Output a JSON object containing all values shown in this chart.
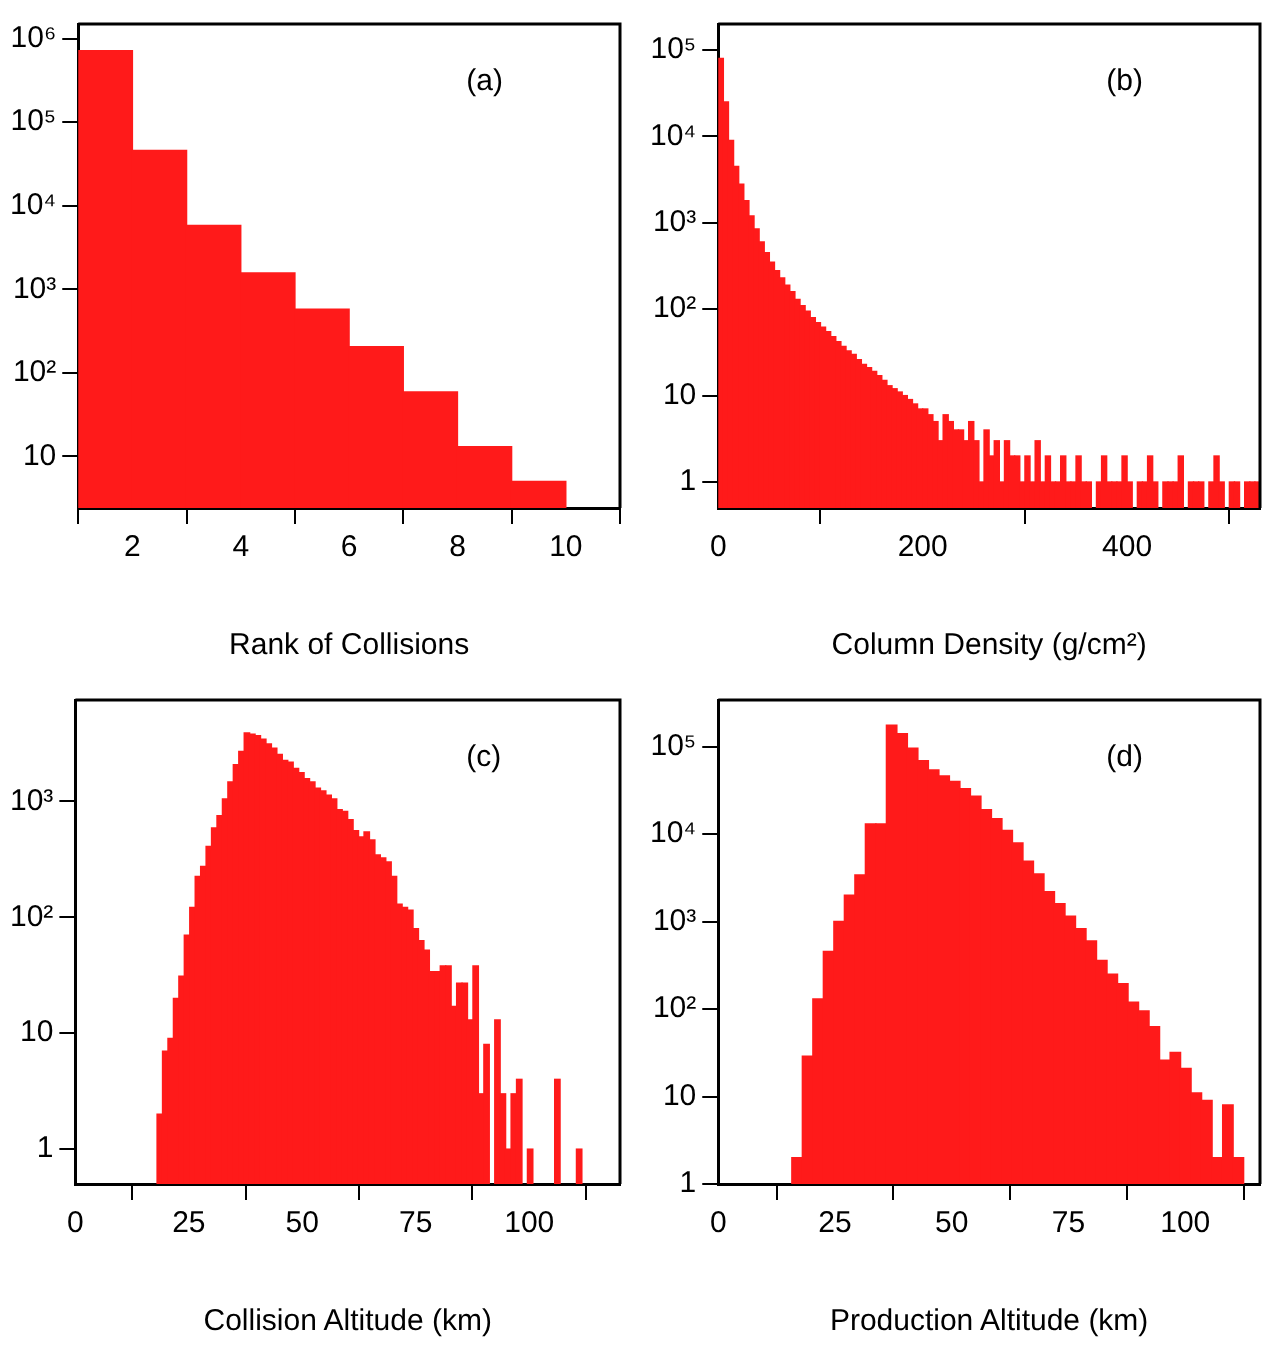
{
  "chart_data": [
    {
      "type": "histogram",
      "xlabel": "Rank of Collisions",
      "annotations": [
        "(a)"
      ],
      "color": "#ff1a1a",
      "log": "y",
      "bins": [
        1,
        2,
        3,
        4,
        5,
        6,
        7,
        8,
        9,
        10
      ],
      "values": [
        720000,
        46000,
        5800,
        1570,
        577,
        205,
        59,
        13,
        5
      ],
      "xlim": [
        1,
        11
      ],
      "xticks": [
        2,
        4,
        6,
        8,
        10
      ],
      "ylim": [
        2.4,
        1500000
      ],
      "yticks": [
        {
          "value": 10,
          "label": "10"
        },
        {
          "value": 100,
          "label": "10²"
        },
        {
          "value": 1000,
          "label": "10³"
        },
        {
          "value": 10000,
          "label": "10⁴"
        },
        {
          "value": 100000,
          "label": "10⁵"
        },
        {
          "value": 1000000,
          "label": "10⁶"
        }
      ]
    },
    {
      "type": "histogram",
      "xlabel": "Column Density (g/cm²)",
      "annotations": [
        "(b)"
      ],
      "color": "#ff1a1a",
      "log": "y",
      "bins": [
        0,
        5,
        10,
        15,
        20,
        25,
        30,
        35,
        40,
        45,
        50,
        55,
        60,
        65,
        70,
        75,
        80,
        85,
        90,
        95,
        100,
        105,
        110,
        115,
        120,
        125,
        130,
        135,
        140,
        145,
        150,
        155,
        160,
        165,
        170,
        175,
        180,
        185,
        190,
        195,
        200,
        205,
        210,
        215,
        220,
        225,
        230,
        235,
        240,
        245,
        250,
        255,
        260,
        265,
        270,
        275,
        280,
        285,
        290,
        295,
        300,
        305,
        310,
        315,
        320,
        325,
        330,
        335,
        340,
        345,
        350,
        355,
        360,
        365,
        370,
        375,
        380,
        385,
        390,
        395,
        400,
        405,
        410,
        415,
        420,
        425,
        430,
        435,
        440,
        445,
        450,
        455,
        460,
        465,
        470,
        475,
        480,
        485,
        490,
        495,
        500,
        505,
        510,
        515,
        520,
        525,
        530
      ],
      "values": [
        80000,
        25000,
        9000,
        4500,
        2800,
        1800,
        1200,
        850,
        600,
        450,
        350,
        280,
        230,
        190,
        160,
        130,
        110,
        95,
        80,
        70,
        62,
        55,
        48,
        42,
        37,
        33,
        30,
        26,
        23,
        21,
        19,
        17,
        15,
        13,
        12,
        11,
        10,
        9,
        8,
        7,
        7,
        6,
        5,
        3,
        6,
        5,
        4,
        4,
        3,
        5,
        3,
        1,
        4,
        2,
        3,
        1,
        3,
        2,
        2,
        1,
        2,
        1,
        3,
        1,
        2,
        1,
        1,
        2,
        1,
        1,
        2,
        1,
        1,
        null,
        1,
        2,
        1,
        1,
        1,
        2,
        1,
        null,
        1,
        1,
        2,
        1,
        null,
        1,
        1,
        1,
        2,
        null,
        1,
        1,
        1,
        null,
        1,
        2,
        1,
        null,
        1,
        1,
        null,
        1,
        1,
        1
      ],
      "xlim": [
        0,
        530
      ],
      "xticks": [
        0,
        200,
        400
      ],
      "ylim": [
        0.5,
        200000
      ],
      "yticks": [
        {
          "value": 1,
          "label": "1"
        },
        {
          "value": 10,
          "label": "10"
        },
        {
          "value": 100,
          "label": "10²"
        },
        {
          "value": 1000,
          "label": "10³"
        },
        {
          "value": 10000,
          "label": "10⁴"
        },
        {
          "value": 100000,
          "label": "10⁵"
        }
      ]
    },
    {
      "type": "histogram",
      "xlabel": "Collision Altitude (km)",
      "annotations": [
        "(c)"
      ],
      "color": "#ff1a1a",
      "log": "y",
      "bins": [
        18,
        19.2,
        20.4,
        21.6,
        22.8,
        24,
        25.2,
        26.4,
        27.6,
        28.8,
        30,
        31.2,
        32.4,
        33.6,
        34.8,
        36,
        37.2,
        38.4,
        39.6,
        40.8,
        42,
        43.2,
        44.4,
        45.6,
        46.8,
        48,
        49.2,
        50.4,
        51.6,
        52.8,
        54,
        55.2,
        56.4,
        57.6,
        58.8,
        60,
        61.2,
        62.4,
        63.6,
        64.8,
        66,
        67.2,
        68.4,
        69.6,
        70.8,
        72,
        73.2,
        74.4,
        75.6,
        76.8,
        78,
        79.2,
        80.4,
        81.6,
        82.8,
        84,
        85.2,
        86.4,
        87.6,
        88.8,
        90,
        91.2,
        92.4,
        93.6,
        94.8,
        96,
        97.2,
        98.4,
        99.6,
        100.8,
        102,
        103.2,
        104.4,
        105.6,
        106.8,
        108,
        109.2,
        110.4,
        111.6
      ],
      "values": [
        2,
        7,
        9,
        20,
        31,
        70,
        122,
        225,
        275,
        410,
        590,
        755,
        1050,
        1475,
        2075,
        2700,
        3900,
        3800,
        3700,
        3450,
        3140,
        2880,
        2550,
        2260,
        2180,
        1930,
        1770,
        1570,
        1475,
        1300,
        1230,
        1130,
        1050,
        850,
        820,
        695,
        560,
        495,
        545,
        465,
        345,
        325,
        300,
        225,
        130,
        122,
        115,
        80,
        63,
        52,
        34,
        34,
        38,
        38,
        17,
        27,
        27,
        13,
        38,
        3,
        8,
        null,
        13,
        3,
        1,
        3,
        4,
        null,
        1,
        null,
        null,
        null,
        null,
        4,
        null,
        null,
        null,
        1
      ],
      "xlim": [
        0,
        120
      ],
      "xticks": [
        0,
        25,
        50,
        75,
        100
      ],
      "ylim": [
        0.5,
        7500
      ],
      "yticks": [
        {
          "value": 1,
          "label": "1"
        },
        {
          "value": 10,
          "label": "10"
        },
        {
          "value": 100,
          "label": "10²"
        },
        {
          "value": 1000,
          "label": "10³"
        }
      ]
    },
    {
      "type": "histogram",
      "xlabel": "Production Altitude (km)",
      "annotations": [
        "(d)"
      ],
      "color": "#ff1a1a",
      "log": "y",
      "bins": [
        15.75,
        18,
        20.25,
        22.5,
        24.75,
        27,
        29.25,
        31.5,
        33.75,
        36,
        38.25,
        40.5,
        42.75,
        45,
        47.25,
        49.5,
        51.75,
        54,
        56.25,
        58.5,
        60.75,
        63,
        65.25,
        67.5,
        69.75,
        72,
        74.25,
        76.5,
        78.75,
        81,
        83.25,
        85.5,
        87.75,
        90,
        92.25,
        94.5,
        96.75,
        99,
        101.25,
        103.5,
        105.75,
        108,
        110.25,
        112.5
      ],
      "values": [
        2,
        29,
        130,
        455,
        1000,
        2000,
        3400,
        13000,
        13000,
        175000,
        140000,
        96000,
        69000,
        54000,
        46000,
        40000,
        33000,
        27000,
        19000,
        15000,
        11000,
        7900,
        4900,
        3500,
        2200,
        1600,
        1150,
        830,
        600,
        360,
        250,
        195,
        120,
        95,
        63,
        26,
        32,
        21,
        11,
        9,
        2,
        8,
        2
      ],
      "xlim": [
        0,
        116
      ],
      "xticks": [
        0,
        25,
        50,
        75,
        100
      ],
      "ylim": [
        1,
        340000
      ],
      "yticks": [
        {
          "value": 1,
          "label": "1"
        },
        {
          "value": 10,
          "label": "10"
        },
        {
          "value": 100,
          "label": "10²"
        },
        {
          "value": 1000,
          "label": "10³"
        },
        {
          "value": 10000,
          "label": "10⁴"
        },
        {
          "value": 100000,
          "label": "10⁵"
        }
      ]
    }
  ]
}
